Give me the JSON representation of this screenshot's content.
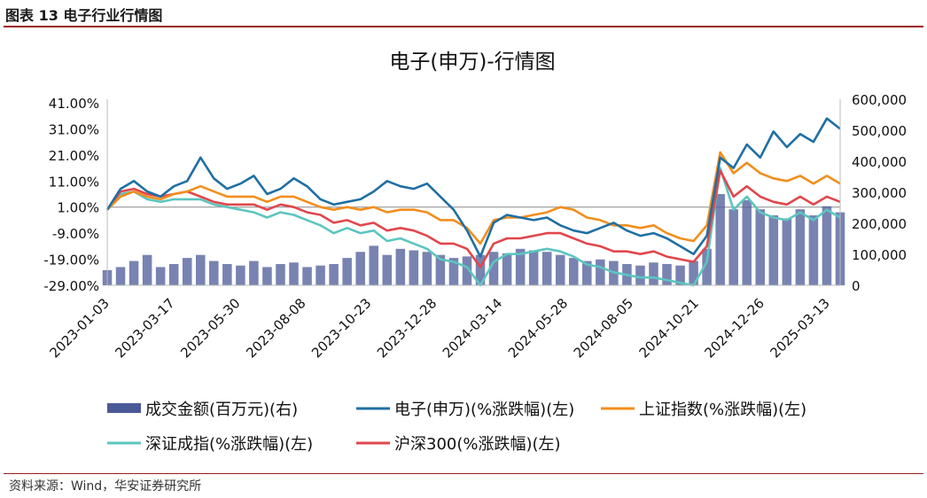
{
  "figure_title": "图表 13 电子行业行情图",
  "source_note": "资料来源：Wind，华安证券研究所",
  "chart_data": {
    "type": "line",
    "title": "电子(申万)-行情图",
    "x_tick_labels": [
      "2023-01-03",
      "2023-03-17",
      "2023-05-30",
      "2023-08-08",
      "2023-10-23",
      "2023-12-28",
      "2024-03-14",
      "2024-05-28",
      "2024-08-05",
      "2024-10-21",
      "2024-12-26",
      "2025-03-13"
    ],
    "y_left": {
      "ticks": [
        "41.00%",
        "31.00%",
        "21.00%",
        "11.00%",
        "1.00%",
        "-9.00%",
        "-19.00%",
        "-29.00%"
      ],
      "min": -29,
      "max": 41
    },
    "y_right": {
      "ticks": [
        "600,000",
        "500,000",
        "400,000",
        "300,000",
        "200,000",
        "100,000",
        "0"
      ],
      "min": 0,
      "max": 600000
    },
    "baseline": 1,
    "legend": [
      {
        "label": "成交金额(百万元)(右)",
        "kind": "bar",
        "color": "#4b5a97"
      },
      {
        "label": "电子(申万)(%涨跌幅)(左)",
        "kind": "line",
        "color": "#1f6fa3"
      },
      {
        "label": "上证指数(%涨跌幅)(左)",
        "kind": "line",
        "color": "#f28e1c"
      },
      {
        "label": "深证成指(%涨跌幅)(左)",
        "kind": "line",
        "color": "#5cc5c0"
      },
      {
        "label": "沪深300(%涨跌幅)(左)",
        "kind": "line",
        "color": "#e0474c"
      }
    ],
    "x_index": [
      0,
      10,
      20,
      30,
      40,
      50,
      60,
      70,
      80,
      90,
      100,
      110,
      120,
      130,
      140,
      150,
      160,
      170,
      180,
      190,
      200,
      210,
      220,
      230,
      240,
      250,
      260,
      270,
      280,
      290,
      300,
      310,
      320,
      330,
      340,
      350,
      360,
      370,
      380,
      390,
      400,
      410,
      420,
      430,
      440,
      450,
      460,
      470,
      480,
      490,
      500,
      510,
      520,
      530,
      540,
      550
    ],
    "series": [
      {
        "name": "电子(申万)(%涨跌幅)(左)",
        "axis": "left",
        "color": "#1f6fa3",
        "values": [
          0,
          8,
          11,
          7,
          5,
          9,
          11,
          20,
          12,
          8,
          10,
          13,
          6,
          8,
          12,
          9,
          4,
          2,
          3,
          4,
          7,
          11,
          9,
          8,
          10,
          5,
          0,
          -8,
          -18,
          -5,
          -2,
          -3,
          -4,
          -3,
          -6,
          -8,
          -9,
          -7,
          -5,
          -8,
          -10,
          -9,
          -11,
          -14,
          -17,
          -10,
          20,
          16,
          25,
          20,
          30,
          24,
          29,
          26,
          35,
          31
        ]
      },
      {
        "name": "上证指数(%涨跌幅)(左)",
        "axis": "left",
        "color": "#f28e1c",
        "values": [
          0,
          5,
          7,
          5,
          4,
          6,
          7,
          9,
          7,
          5,
          5,
          5,
          3,
          5,
          5,
          3,
          1,
          0,
          1,
          0,
          1,
          -1,
          0,
          0,
          -1,
          -4,
          -4,
          -7,
          -13,
          -4,
          -3,
          -3,
          -2,
          -1,
          1,
          0,
          -3,
          -4,
          -6,
          -6,
          -7,
          -6,
          -9,
          -11,
          -12,
          -6,
          22,
          14,
          18,
          14,
          12,
          11,
          13,
          10,
          13,
          10
        ]
      },
      {
        "name": "深证成指(%涨跌幅)(左)",
        "axis": "left",
        "color": "#5cc5c0",
        "values": [
          0,
          6,
          7,
          4,
          3,
          4,
          4,
          4,
          2,
          1,
          0,
          -1,
          -3,
          -1,
          -2,
          -4,
          -6,
          -9,
          -7,
          -9,
          -8,
          -12,
          -11,
          -13,
          -15,
          -19,
          -20,
          -22,
          -29,
          -20,
          -17,
          -17,
          -16,
          -15,
          -16,
          -18,
          -21,
          -22,
          -24,
          -25,
          -26,
          -26,
          -27,
          -28,
          -29,
          -20,
          16,
          0,
          5,
          -1,
          -3,
          -4,
          -1,
          -4,
          0,
          -3
        ]
      },
      {
        "name": "沪深300(%涨跌幅)(左)",
        "axis": "left",
        "color": "#e0474c",
        "values": [
          0,
          7,
          8,
          6,
          5,
          6,
          7,
          5,
          3,
          2,
          2,
          2,
          0,
          2,
          1,
          -1,
          -2,
          -5,
          -4,
          -6,
          -5,
          -8,
          -7,
          -8,
          -10,
          -13,
          -13,
          -15,
          -22,
          -13,
          -11,
          -11,
          -10,
          -9,
          -9,
          -11,
          -13,
          -14,
          -16,
          -16,
          -17,
          -16,
          -18,
          -19,
          -20,
          -14,
          15,
          5,
          9,
          5,
          3,
          2,
          5,
          2,
          5,
          3
        ]
      },
      {
        "name": "成交金额(百万元)(右)",
        "axis": "right",
        "kind": "bar",
        "color": "#4b5a97",
        "values": [
          50000,
          60000,
          80000,
          100000,
          60000,
          70000,
          90000,
          100000,
          80000,
          70000,
          65000,
          80000,
          60000,
          70000,
          75000,
          60000,
          65000,
          70000,
          90000,
          110000,
          130000,
          100000,
          120000,
          115000,
          110000,
          100000,
          90000,
          95000,
          100000,
          110000,
          105000,
          120000,
          115000,
          110000,
          100000,
          90000,
          80000,
          85000,
          80000,
          70000,
          65000,
          75000,
          70000,
          65000,
          80000,
          120000,
          300000,
          250000,
          280000,
          250000,
          230000,
          220000,
          250000,
          230000,
          260000,
          240000
        ]
      }
    ]
  }
}
